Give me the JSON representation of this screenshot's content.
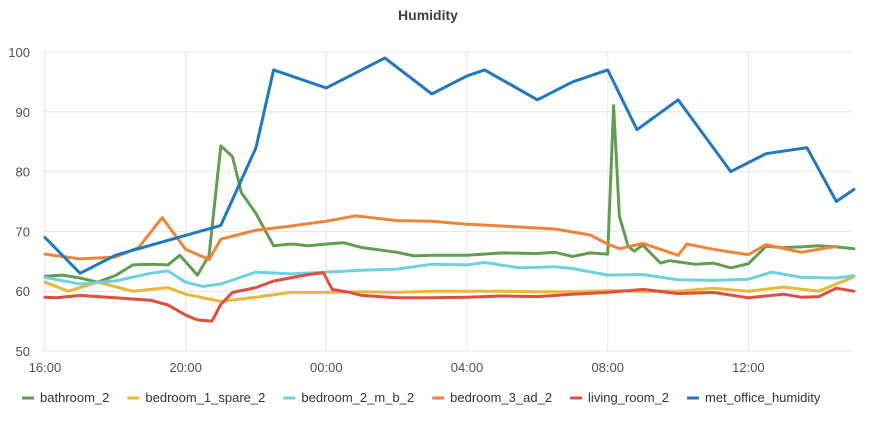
{
  "chart_data": {
    "type": "line",
    "title": "Humidity",
    "xlabel": "",
    "ylabel": "",
    "grid": true,
    "legend_placement": "bottom",
    "ylim": [
      50,
      100
    ],
    "xlim": [
      "15:55",
      "14:55"
    ],
    "y_ticks": [
      50,
      60,
      70,
      80,
      90,
      100
    ],
    "x_ticks": [
      "16:00",
      "20:00",
      "00:00",
      "04:00",
      "08:00",
      "12:00"
    ],
    "series": [
      {
        "name": "bathroom_2",
        "color": "#629e51",
        "points": [
          [
            "16:00",
            62.5
          ],
          [
            "16:30",
            62.7
          ],
          [
            "17:00",
            62.2
          ],
          [
            "17:30",
            61.5
          ],
          [
            "18:00",
            62.6
          ],
          [
            "18:30",
            64.4
          ],
          [
            "19:00",
            64.5
          ],
          [
            "19:30",
            64.4
          ],
          [
            "19:50",
            66.0
          ],
          [
            "20:20",
            62.7
          ],
          [
            "20:40",
            66.0
          ],
          [
            "21:00",
            84.3
          ],
          [
            "21:20",
            82.5
          ],
          [
            "21:35",
            76.5
          ],
          [
            "22:00",
            73.0
          ],
          [
            "22:30",
            67.6
          ],
          [
            "23:00",
            67.9
          ],
          [
            "23:30",
            67.6
          ],
          [
            "00:00",
            67.9
          ],
          [
            "00:30",
            68.1
          ],
          [
            "01:00",
            67.3
          ],
          [
            "02:00",
            66.5
          ],
          [
            "02:30",
            65.9
          ],
          [
            "03:00",
            66.0
          ],
          [
            "04:00",
            66.0
          ],
          [
            "05:00",
            66.4
          ],
          [
            "06:00",
            66.3
          ],
          [
            "06:30",
            66.5
          ],
          [
            "07:00",
            65.8
          ],
          [
            "07:30",
            66.4
          ],
          [
            "08:00",
            66.2
          ],
          [
            "08:10",
            91.0
          ],
          [
            "08:20",
            72.5
          ],
          [
            "08:35",
            67.5
          ],
          [
            "08:45",
            66.7
          ],
          [
            "09:00",
            67.7
          ],
          [
            "09:30",
            64.7
          ],
          [
            "09:45",
            65.1
          ],
          [
            "10:00",
            64.9
          ],
          [
            "10:30",
            64.5
          ],
          [
            "11:00",
            64.7
          ],
          [
            "11:30",
            63.9
          ],
          [
            "12:00",
            64.6
          ],
          [
            "12:30",
            67.5
          ],
          [
            "13:00",
            67.3
          ],
          [
            "13:30",
            67.4
          ],
          [
            "14:00",
            67.6
          ],
          [
            "14:30",
            67.4
          ],
          [
            "15:00",
            67.1
          ]
        ]
      },
      {
        "name": "bedroom_1_spare_2",
        "color": "#eab839",
        "points": [
          [
            "16:00",
            61.5
          ],
          [
            "16:40",
            60.0
          ],
          [
            "17:30",
            61.5
          ],
          [
            "18:30",
            60.0
          ],
          [
            "19:30",
            60.6
          ],
          [
            "20:00",
            59.5
          ],
          [
            "21:00",
            58.3
          ],
          [
            "22:00",
            59.0
          ],
          [
            "23:00",
            59.8
          ],
          [
            "00:00",
            59.8
          ],
          [
            "01:00",
            59.9
          ],
          [
            "02:00",
            59.8
          ],
          [
            "03:00",
            60.0
          ],
          [
            "04:00",
            60.0
          ],
          [
            "05:00",
            60.0
          ],
          [
            "06:00",
            59.9
          ],
          [
            "07:00",
            59.9
          ],
          [
            "08:00",
            60.1
          ],
          [
            "09:00",
            60.0
          ],
          [
            "10:00",
            60.0
          ],
          [
            "11:00",
            60.5
          ],
          [
            "12:00",
            60.0
          ],
          [
            "13:00",
            60.7
          ],
          [
            "14:00",
            60.0
          ],
          [
            "15:00",
            62.4
          ]
        ]
      },
      {
        "name": "bedroom_2_m_b_2",
        "color": "#6ed0e0",
        "points": [
          [
            "16:00",
            62.3
          ],
          [
            "17:00",
            61.2
          ],
          [
            "18:00",
            61.7
          ],
          [
            "19:00",
            63.0
          ],
          [
            "19:30",
            63.4
          ],
          [
            "20:00",
            61.5
          ],
          [
            "20:30",
            60.8
          ],
          [
            "21:00",
            61.2
          ],
          [
            "22:00",
            63.2
          ],
          [
            "23:00",
            62.9
          ],
          [
            "00:00",
            63.2
          ],
          [
            "01:00",
            63.5
          ],
          [
            "02:00",
            63.7
          ],
          [
            "03:00",
            64.5
          ],
          [
            "04:00",
            64.4
          ],
          [
            "04:30",
            64.8
          ],
          [
            "05:30",
            63.9
          ],
          [
            "06:30",
            64.1
          ],
          [
            "07:00",
            63.8
          ],
          [
            "08:00",
            62.7
          ],
          [
            "09:00",
            62.8
          ],
          [
            "10:00",
            61.9
          ],
          [
            "11:00",
            61.8
          ],
          [
            "12:00",
            62.0
          ],
          [
            "12:40",
            63.2
          ],
          [
            "13:30",
            62.3
          ],
          [
            "14:30",
            62.2
          ],
          [
            "15:00",
            62.6
          ]
        ]
      },
      {
        "name": "bedroom_3_ad_2",
        "color": "#ef843c",
        "points": [
          [
            "16:00",
            66.2
          ],
          [
            "17:00",
            65.4
          ],
          [
            "18:00",
            65.7
          ],
          [
            "18:40",
            67.3
          ],
          [
            "19:20",
            72.3
          ],
          [
            "20:00",
            67.0
          ],
          [
            "20:40",
            65.3
          ],
          [
            "21:00",
            68.7
          ],
          [
            "22:00",
            70.2
          ],
          [
            "23:00",
            70.9
          ],
          [
            "00:00",
            71.7
          ],
          [
            "00:50",
            72.6
          ],
          [
            "02:00",
            71.8
          ],
          [
            "03:00",
            71.7
          ],
          [
            "04:00",
            71.2
          ],
          [
            "05:00",
            70.9
          ],
          [
            "06:30",
            70.4
          ],
          [
            "07:30",
            69.4
          ],
          [
            "08:00",
            67.9
          ],
          [
            "08:20",
            67.1
          ],
          [
            "09:00",
            68.0
          ],
          [
            "10:00",
            66.0
          ],
          [
            "10:15",
            67.9
          ],
          [
            "11:00",
            67.0
          ],
          [
            "12:00",
            66.1
          ],
          [
            "12:30",
            67.8
          ],
          [
            "13:30",
            66.5
          ],
          [
            "14:00",
            67.0
          ],
          [
            "14:30",
            67.5
          ]
        ]
      },
      {
        "name": "living_room_2",
        "color": "#e24d42",
        "points": [
          [
            "16:00",
            59.0
          ],
          [
            "16:20",
            58.9
          ],
          [
            "17:00",
            59.3
          ],
          [
            "17:30",
            59.1
          ],
          [
            "18:00",
            58.9
          ],
          [
            "19:00",
            58.5
          ],
          [
            "19:30",
            57.7
          ],
          [
            "20:00",
            56.0
          ],
          [
            "20:20",
            55.2
          ],
          [
            "20:45",
            55.0
          ],
          [
            "21:00",
            57.8
          ],
          [
            "21:20",
            59.8
          ],
          [
            "22:00",
            60.6
          ],
          [
            "22:30",
            61.7
          ],
          [
            "23:30",
            62.8
          ],
          [
            "23:55",
            63.1
          ],
          [
            "00:10",
            60.3
          ],
          [
            "00:40",
            59.8
          ],
          [
            "01:00",
            59.3
          ],
          [
            "02:00",
            58.9
          ],
          [
            "03:00",
            58.9
          ],
          [
            "04:00",
            59.0
          ],
          [
            "05:00",
            59.2
          ],
          [
            "06:00",
            59.1
          ],
          [
            "07:00",
            59.5
          ],
          [
            "08:00",
            59.8
          ],
          [
            "09:00",
            60.3
          ],
          [
            "10:00",
            59.6
          ],
          [
            "11:00",
            59.8
          ],
          [
            "12:00",
            58.9
          ],
          [
            "13:00",
            59.5
          ],
          [
            "13:30",
            59.0
          ],
          [
            "14:00",
            59.1
          ],
          [
            "14:30",
            60.5
          ],
          [
            "15:00",
            60.0
          ]
        ]
      },
      {
        "name": "met_office_humidity",
        "color": "#1f78c1",
        "points": [
          [
            "16:00",
            69.0
          ],
          [
            "17:00",
            63.0
          ],
          [
            "18:00",
            66.0
          ],
          [
            "21:00",
            71.0
          ],
          [
            "22:00",
            84.0
          ],
          [
            "22:30",
            97.0
          ],
          [
            "00:00",
            94.0
          ],
          [
            "01:00",
            97.0
          ],
          [
            "01:40",
            99.0
          ],
          [
            "03:00",
            93.0
          ],
          [
            "04:00",
            96.0
          ],
          [
            "04:30",
            97.0
          ],
          [
            "06:00",
            92.0
          ],
          [
            "07:00",
            95.0
          ],
          [
            "08:00",
            97.0
          ],
          [
            "08:50",
            87.0
          ],
          [
            "10:00",
            92.0
          ],
          [
            "11:30",
            80.0
          ],
          [
            "12:30",
            83.0
          ],
          [
            "13:40",
            84.0
          ],
          [
            "14:30",
            75.0
          ],
          [
            "15:00",
            77.0
          ]
        ]
      }
    ]
  }
}
